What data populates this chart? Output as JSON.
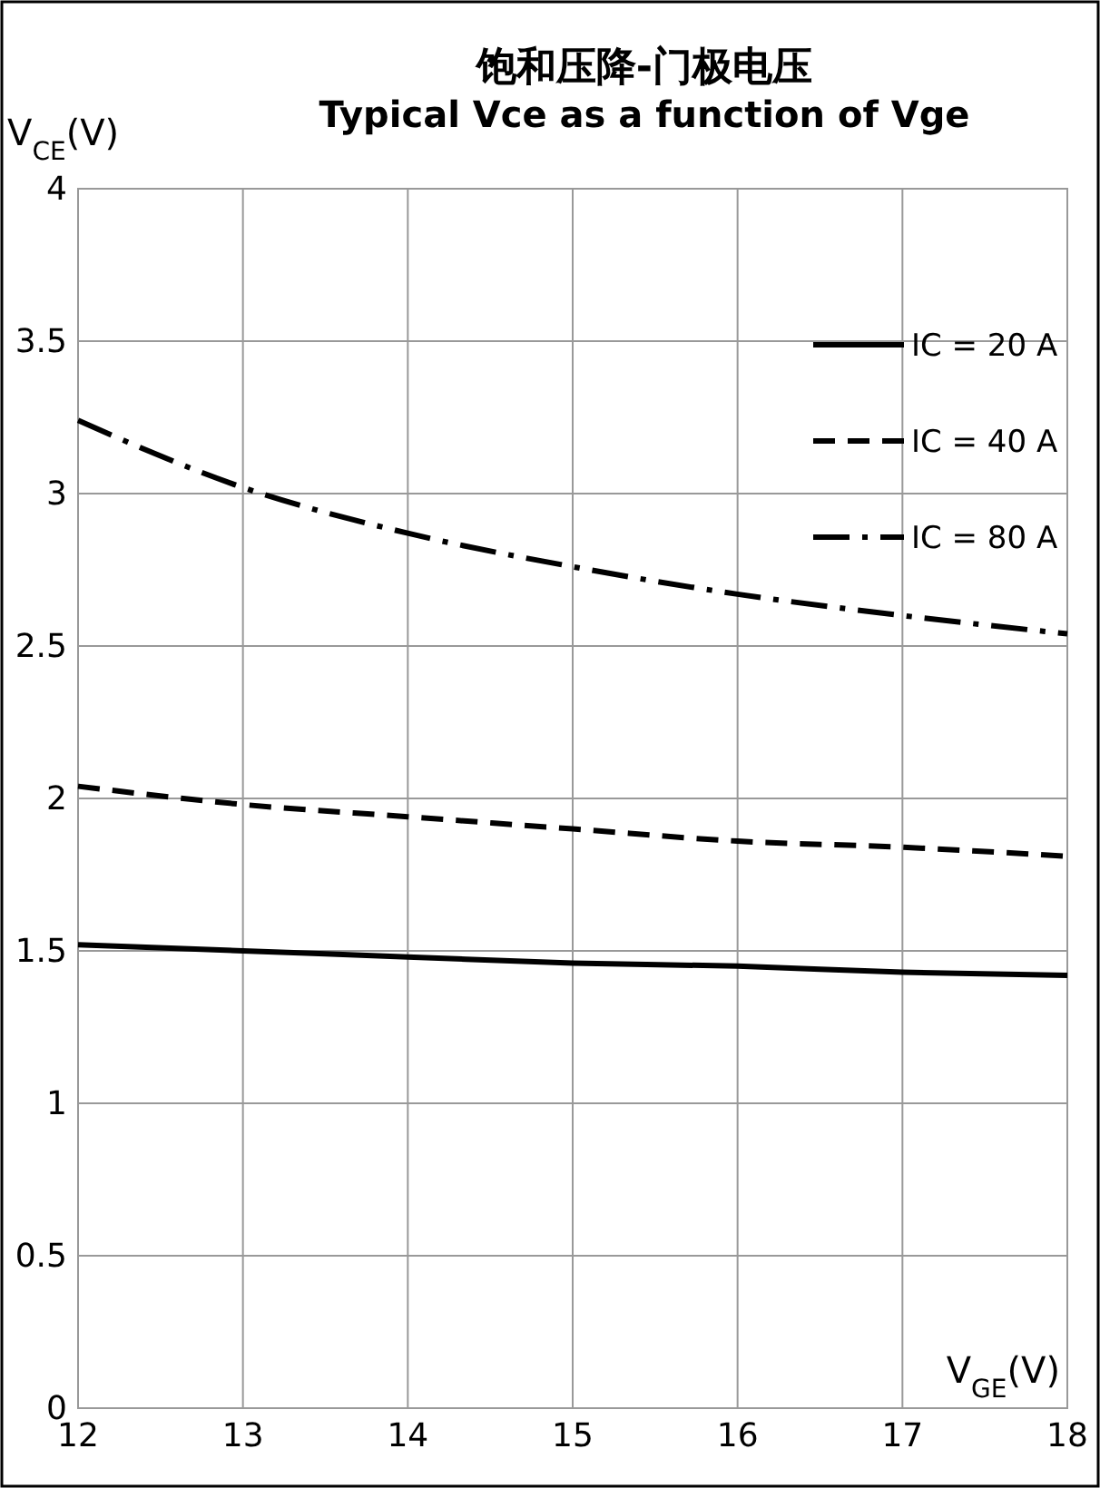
{
  "chart_data": {
    "type": "line",
    "title": "饱和压降-门极电压",
    "subtitle": "Typical Vce as a function of Vge",
    "xlabel": "V$_{GE}$(V)",
    "ylabel": "V$_{CE}$(V)",
    "x": [
      12,
      13,
      14,
      15,
      16,
      17,
      18
    ],
    "series": [
      {
        "name": "IC = 20 A",
        "color": "#000000",
        "line_style": "solid",
        "values": [
          1.52,
          1.5,
          1.48,
          1.46,
          1.45,
          1.43,
          1.42
        ]
      },
      {
        "name": "IC = 40 A",
        "color": "#000000",
        "line_style": "dashed",
        "values": [
          2.04,
          1.98,
          1.94,
          1.9,
          1.86,
          1.84,
          1.81
        ]
      },
      {
        "name": "IC = 80 A",
        "color": "#000000",
        "line_style": "dashdot",
        "values": [
          3.24,
          3.02,
          2.87,
          2.76,
          2.67,
          2.6,
          2.54
        ]
      }
    ],
    "xlim": [
      12,
      18
    ],
    "ylim": [
      0,
      4
    ],
    "xticks": [
      12,
      13,
      14,
      15,
      16,
      17,
      18
    ],
    "yticks": [
      0,
      {
        "value": 0.5,
        "label": "0.5"
      },
      1,
      {
        "value": 1.5,
        "label": "1.5"
      },
      2,
      {
        "value": 2.5,
        "label": "2.5"
      },
      3,
      {
        "value": 3.5,
        "label": "3.5"
      },
      4
    ],
    "grid": true,
    "legend": "top right",
    "marker": "none"
  }
}
